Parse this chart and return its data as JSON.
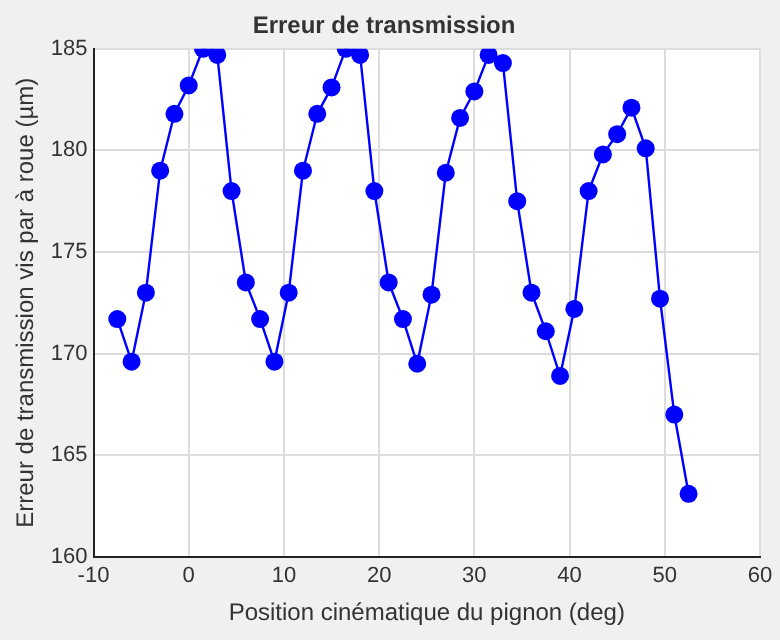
{
  "chart_data": {
    "type": "line",
    "title": "Erreur de transmission",
    "xlabel": "Position cinématique du pignon (deg)",
    "ylabel": "Erreur de transmission vis par à roue (µm)",
    "x": [
      -7.5,
      -6,
      -4.5,
      -3,
      -1.5,
      0,
      1.5,
      3,
      4.5,
      6,
      7.5,
      9,
      10.5,
      12,
      13.5,
      15,
      16.5,
      18,
      19.5,
      21,
      22.5,
      24,
      25.5,
      27,
      28.5,
      30,
      31.5,
      33,
      34.5,
      36,
      37.5,
      39,
      40.5,
      42,
      43.5,
      45,
      46.5,
      48,
      49.5,
      51,
      52.5
    ],
    "series": [
      {
        "color": "#0000ff",
        "values": [
          171.7,
          169.6,
          173,
          179,
          181.8,
          183.2,
          185,
          184.7,
          178,
          173.5,
          171.7,
          169.6,
          173,
          179,
          181.8,
          183.1,
          185,
          184.7,
          178,
          173.5,
          171.7,
          169.5,
          172.9,
          178.9,
          181.6,
          182.9,
          184.7,
          184.3,
          177.5,
          173,
          171.1,
          168.9,
          172.2,
          178,
          179.8,
          180.8,
          182.1,
          180.1,
          172.7,
          167,
          163.1
        ]
      }
    ],
    "xlim": [
      -10,
      60
    ],
    "xticks": [
      -10,
      0,
      10,
      20,
      30,
      40,
      50,
      60
    ],
    "ylim": [
      160,
      185
    ],
    "yticks": [
      160,
      165,
      170,
      175,
      180,
      185
    ],
    "grid": true,
    "marker": "circle",
    "line_style": "solid",
    "legend": false
  }
}
